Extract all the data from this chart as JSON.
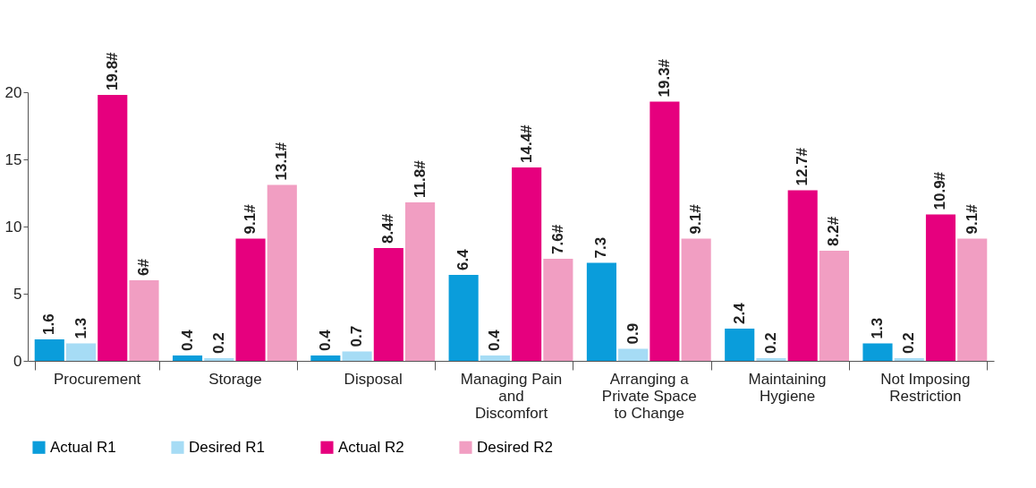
{
  "chart_data": {
    "type": "bar",
    "categories": [
      "Procurement",
      "Storage",
      "Disposal",
      "Managing Pain and Discomfort",
      "Arranging a Private Space to Change",
      "Maintaining Hygiene",
      "Not Imposing Restriction"
    ],
    "series": [
      {
        "name": "Actual R1",
        "color": "#0a9ddb",
        "values": [
          1.6,
          0.4,
          0.4,
          6.4,
          7.3,
          2.4,
          1.3
        ],
        "value_labels": [
          "1.6",
          "0.4",
          "0.4",
          "6.4",
          "7.3",
          "2.4",
          "1.3"
        ]
      },
      {
        "name": "Desired R1",
        "color": "#a6dcf5",
        "values": [
          1.3,
          0.2,
          0.7,
          0.4,
          0.9,
          0.2,
          0.2
        ],
        "value_labels": [
          "1.3",
          "0.2",
          "0.7",
          "0.4",
          "0.9",
          "0.2",
          "0.2"
        ]
      },
      {
        "name": "Actual R2",
        "color": "#e6007e",
        "values": [
          19.8,
          9.1,
          8.4,
          14.4,
          19.3,
          12.7,
          10.9
        ],
        "value_labels": [
          "19.8#",
          "9.1#",
          "8.4#",
          "14.4#",
          "19.3#",
          "12.7#",
          "10.9#"
        ]
      },
      {
        "name": "Desired R2",
        "color": "#f19ec2",
        "values": [
          6,
          13.1,
          11.8,
          7.6,
          9.1,
          8.2,
          9.1
        ],
        "value_labels": [
          "6#",
          "13.1#",
          "11.8#",
          "7.6#",
          "9.1#",
          "8.2#",
          "9.1#"
        ]
      }
    ],
    "ylim": [
      0,
      20
    ],
    "yticks": [
      0,
      5,
      10,
      15,
      20
    ],
    "grid": false,
    "legend": "bottom"
  }
}
